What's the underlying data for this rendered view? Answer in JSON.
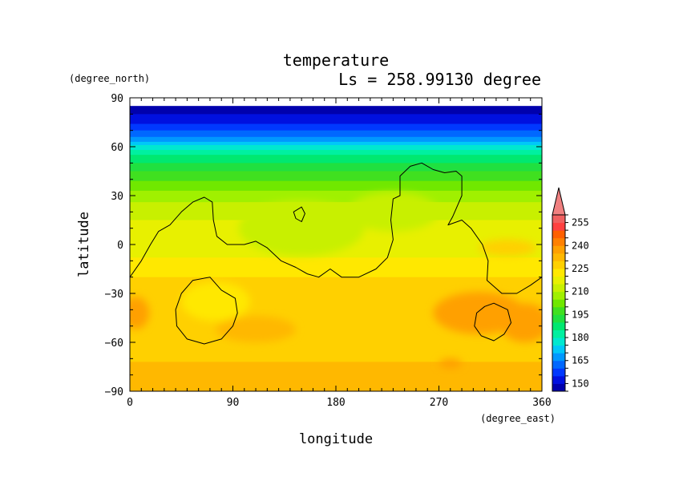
{
  "chart_data": {
    "type": "heatmap",
    "title": "temperature",
    "subtitle": "Ls = 258.99130 degree",
    "xlabel": "longitude",
    "ylabel": "latitude",
    "x_units": "(degree_east)",
    "y_units": "(degree_north)",
    "xlim": [
      0,
      360
    ],
    "ylim": [
      -90,
      90
    ],
    "x_ticks": [
      0,
      90,
      180,
      270,
      360
    ],
    "y_ticks": [
      -90,
      -60,
      -30,
      0,
      30,
      60,
      90
    ],
    "x_tick_labels": [
      "0",
      "90",
      "180",
      "270",
      "360"
    ],
    "y_tick_labels": [
      "−90",
      "−60",
      "−30",
      "0",
      "30",
      "60",
      "90"
    ],
    "colorbar": {
      "levels": [
        145,
        150,
        155,
        160,
        165,
        170,
        175,
        180,
        185,
        190,
        195,
        200,
        205,
        210,
        215,
        220,
        225,
        230,
        235,
        240,
        245,
        250,
        255,
        260
      ],
      "tick_values": [
        150,
        165,
        180,
        195,
        210,
        225,
        240,
        255
      ],
      "tick_labels": [
        "150",
        "165",
        "180",
        "195",
        "210",
        "225",
        "240",
        "255"
      ],
      "colors": [
        "#0000ad",
        "#0010e0",
        "#0038ff",
        "#0068ff",
        "#0098ff",
        "#00c8f8",
        "#00e8d0",
        "#00f0a0",
        "#00e870",
        "#20e040",
        "#40e020",
        "#70e800",
        "#a0f000",
        "#c8f000",
        "#e8f000",
        "#ffe800",
        "#ffd000",
        "#ffb800",
        "#ffa000",
        "#ff8000",
        "#ff6000",
        "#ff4040",
        "#f06060"
      ],
      "extend_color": "#f08080",
      "extend": "max"
    },
    "lat_profile": [
      {
        "lat": 85,
        "value": 147
      },
      {
        "lat": 75,
        "value": 153
      },
      {
        "lat": 65,
        "value": 167
      },
      {
        "lat": 55,
        "value": 185
      },
      {
        "lat": 45,
        "value": 195
      },
      {
        "lat": 35,
        "value": 203
      },
      {
        "lat": 25,
        "value": 211
      },
      {
        "lat": 15,
        "value": 215
      },
      {
        "lat": 5,
        "value": 217
      },
      {
        "lat": -5,
        "value": 219
      },
      {
        "lat": -15,
        "value": 222
      },
      {
        "lat": -25,
        "value": 228
      },
      {
        "lat": -35,
        "value": 230
      },
      {
        "lat": -45,
        "value": 229
      },
      {
        "lat": -55,
        "value": 229
      },
      {
        "lat": -65,
        "value": 228
      },
      {
        "lat": -75,
        "value": 231
      },
      {
        "lat": -85,
        "value": 231
      }
    ],
    "anomalies": [
      {
        "lon": 150,
        "lat": 10,
        "rlon": 55,
        "rlat": 17,
        "value": 211
      },
      {
        "lon": 230,
        "lat": 20,
        "rlon": 40,
        "rlat": 12,
        "value": 211
      },
      {
        "lon": 75,
        "lat": -35,
        "rlon": 30,
        "rlat": 12,
        "value": 222
      },
      {
        "lon": 110,
        "lat": -52,
        "rlon": 35,
        "rlat": 8,
        "value": 232
      },
      {
        "lon": 305,
        "lat": -42,
        "rlon": 40,
        "rlat": 13,
        "value": 238
      },
      {
        "lon": 5,
        "lat": -42,
        "rlon": 12,
        "rlat": 10,
        "value": 236
      },
      {
        "lon": 345,
        "lat": -48,
        "rlon": 22,
        "rlat": 12,
        "value": 236
      },
      {
        "lon": 280,
        "lat": -73,
        "rlon": 10,
        "rlat": 3,
        "value": 237
      },
      {
        "lon": 330,
        "lat": -2,
        "rlon": 25,
        "rlat": 5,
        "value": 225
      },
      {
        "lon": 10,
        "lat": 2,
        "rlon": 12,
        "rlat": 6,
        "value": 218
      }
    ],
    "contours": [
      [
        [
          0,
          -20
        ],
        [
          10,
          -10
        ],
        [
          18,
          0
        ],
        [
          25,
          8
        ],
        [
          35,
          12
        ],
        [
          45,
          20
        ],
        [
          55,
          26
        ],
        [
          65,
          29
        ],
        [
          72,
          26
        ],
        [
          73,
          15
        ],
        [
          76,
          5
        ],
        [
          85,
          0
        ],
        [
          100,
          0
        ],
        [
          110,
          2
        ],
        [
          120,
          -2
        ],
        [
          132,
          -10
        ],
        [
          145,
          -14
        ],
        [
          155,
          -18
        ],
        [
          165,
          -20
        ],
        [
          175,
          -15
        ],
        [
          185,
          -20
        ],
        [
          200,
          -20
        ],
        [
          215,
          -15
        ],
        [
          225,
          -8
        ],
        [
          230,
          3
        ],
        [
          228,
          15
        ],
        [
          230,
          28
        ],
        [
          236,
          30
        ],
        [
          236,
          42
        ],
        [
          245,
          48
        ],
        [
          255,
          50
        ],
        [
          265,
          46
        ],
        [
          275,
          44
        ],
        [
          285,
          45
        ],
        [
          290,
          42
        ],
        [
          290,
          30
        ],
        [
          282,
          17
        ],
        [
          278,
          12
        ],
        [
          290,
          15
        ],
        [
          298,
          10
        ],
        [
          308,
          0
        ],
        [
          313,
          -10
        ],
        [
          312,
          -22
        ],
        [
          325,
          -30
        ],
        [
          338,
          -30
        ],
        [
          350,
          -25
        ],
        [
          360,
          -20
        ]
      ],
      [
        [
          143,
          20
        ],
        [
          150,
          23
        ],
        [
          153,
          19
        ],
        [
          150,
          14
        ],
        [
          145,
          16
        ]
      ],
      [
        [
          80,
          -28
        ],
        [
          70,
          -20
        ],
        [
          55,
          -22
        ],
        [
          45,
          -30
        ],
        [
          40,
          -40
        ],
        [
          41,
          -50
        ],
        [
          50,
          -58
        ],
        [
          65,
          -61
        ],
        [
          80,
          -58
        ],
        [
          90,
          -50
        ],
        [
          94,
          -42
        ],
        [
          92,
          -33
        ]
      ],
      [
        [
          318,
          -36
        ],
        [
          310,
          -38
        ],
        [
          303,
          -42
        ],
        [
          301,
          -50
        ],
        [
          307,
          -56
        ],
        [
          318,
          -59
        ],
        [
          327,
          -55
        ],
        [
          333,
          -48
        ],
        [
          330,
          -40
        ]
      ]
    ]
  }
}
